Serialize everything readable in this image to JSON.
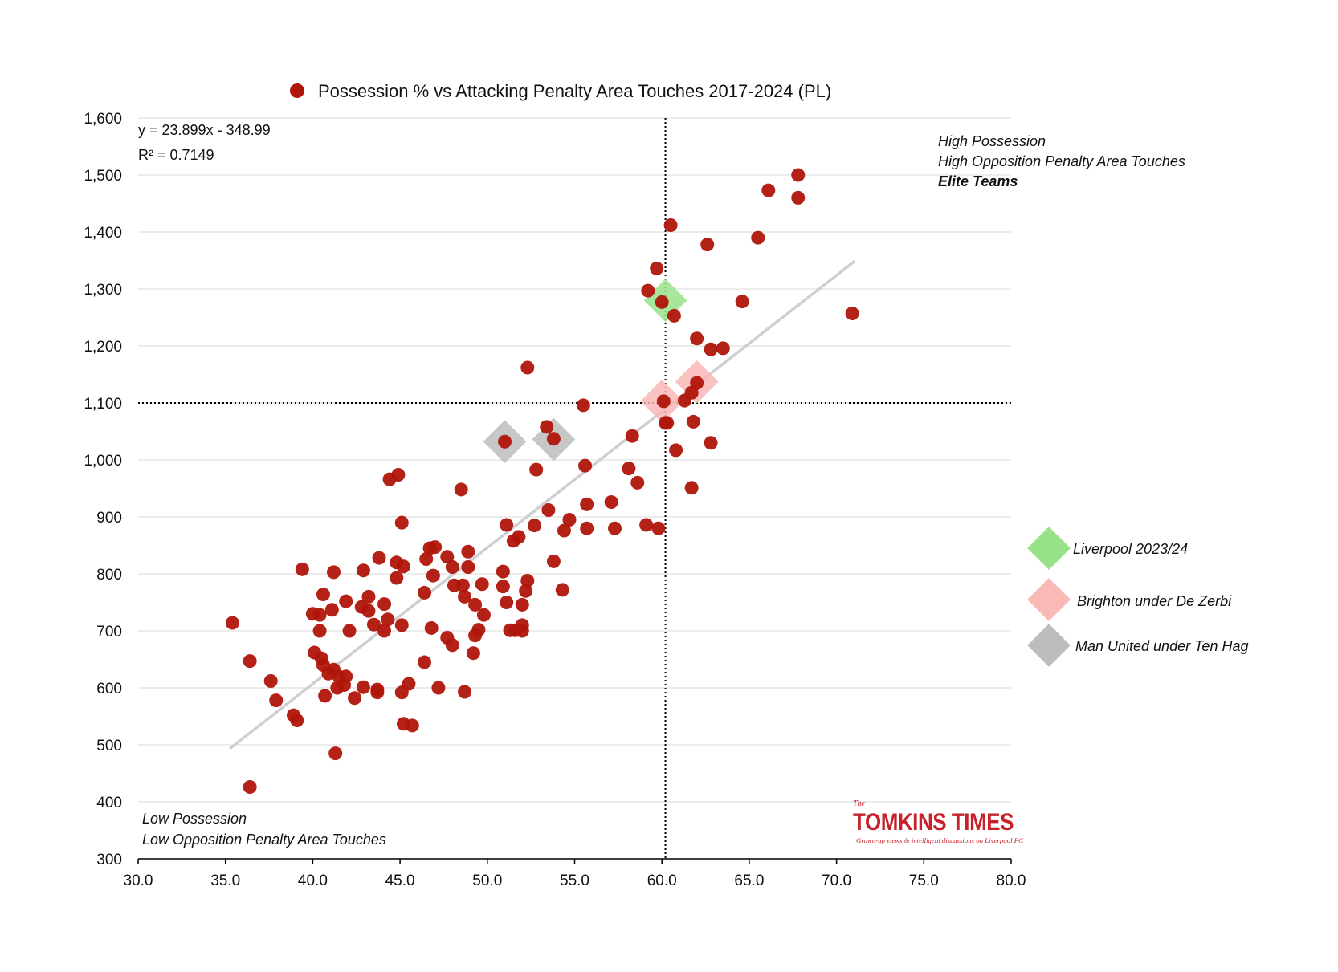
{
  "colors": {
    "points": "#b0150a",
    "trendline": "#cfcfcf",
    "liverpool": "#98e28a",
    "brighton": "#f9b9b6",
    "man_united": "#bdbdbd",
    "logo": "#c8202a"
  },
  "chart_data": {
    "type": "scatter",
    "title": "Possession % vs Attacking Penalty Area Touches 2017-2024 (PL)",
    "xlabel": "",
    "ylabel": "",
    "xlim": [
      30,
      80
    ],
    "ylim": [
      300,
      1600
    ],
    "x_ticks": [
      "30.0",
      "35.0",
      "40.0",
      "45.0",
      "50.0",
      "55.0",
      "60.0",
      "65.0",
      "70.0",
      "75.0",
      "80.0"
    ],
    "y_ticks": [
      "300",
      "400",
      "500",
      "600",
      "700",
      "800",
      "900",
      "1,000",
      "1,100",
      "1,200",
      "1,300",
      "1,400",
      "1,500",
      "1,600"
    ],
    "grid": "horizontal",
    "legend_position": "top",
    "reference_lines": {
      "x": 60.2,
      "y": 1100
    },
    "trendline": {
      "equation": "y = 23.899x - 348.99",
      "r_squared": "R² = 0.7149",
      "slope": 23.899,
      "intercept": -348.99,
      "x_range": [
        35.3,
        71.0
      ]
    },
    "quadrant_labels": {
      "top_right": [
        "High Possession",
        "High Opposition Penalty Area Touches",
        "Elite Teams"
      ],
      "bottom_left": [
        "Low Possession",
        "Low Opposition Penalty Area Touches"
      ]
    },
    "highlights": [
      {
        "name": "Liverpool 2023/24",
        "color": "#98e28a",
        "points": [
          [
            60.2,
            1280
          ]
        ]
      },
      {
        "name": "Brighton under De Zerbi",
        "color": "#f9b9b6",
        "points": [
          [
            60.0,
            1103
          ],
          [
            62.0,
            1137
          ]
        ]
      },
      {
        "name": "Man United under Ten Hag",
        "color": "#bdbdbd",
        "points": [
          [
            51.0,
            1032
          ],
          [
            53.8,
            1036
          ]
        ]
      }
    ],
    "series": [
      {
        "name": "Possession % vs Attacking Penalty Area Touches 2017-2024 (PL)",
        "points": [
          [
            67.8,
            1500
          ],
          [
            66.1,
            1473
          ],
          [
            67.8,
            1460
          ],
          [
            60.5,
            1412
          ],
          [
            65.5,
            1390
          ],
          [
            62.6,
            1378
          ],
          [
            59.7,
            1336
          ],
          [
            59.2,
            1297
          ],
          [
            60.0,
            1277
          ],
          [
            64.6,
            1278
          ],
          [
            70.9,
            1257
          ],
          [
            60.7,
            1253
          ],
          [
            62.0,
            1213
          ],
          [
            62.8,
            1194
          ],
          [
            63.5,
            1196
          ],
          [
            52.3,
            1162
          ],
          [
            62.0,
            1135
          ],
          [
            61.7,
            1118
          ],
          [
            61.3,
            1104
          ],
          [
            60.1,
            1103
          ],
          [
            55.5,
            1096
          ],
          [
            60.2,
            1065
          ],
          [
            60.3,
            1065
          ],
          [
            61.8,
            1067
          ],
          [
            53.4,
            1058
          ],
          [
            53.8,
            1037
          ],
          [
            58.3,
            1042
          ],
          [
            51.0,
            1032
          ],
          [
            62.8,
            1030
          ],
          [
            60.8,
            1017
          ],
          [
            58.1,
            985
          ],
          [
            52.8,
            983
          ],
          [
            55.6,
            990
          ],
          [
            58.6,
            960
          ],
          [
            44.4,
            966
          ],
          [
            44.9,
            974
          ],
          [
            48.5,
            948
          ],
          [
            61.7,
            951
          ],
          [
            57.1,
            926
          ],
          [
            55.7,
            922
          ],
          [
            53.5,
            912
          ],
          [
            59.1,
            886
          ],
          [
            54.7,
            895
          ],
          [
            59.8,
            880
          ],
          [
            54.4,
            876
          ],
          [
            55.7,
            880
          ],
          [
            57.3,
            880
          ],
          [
            45.1,
            890
          ],
          [
            51.1,
            886
          ],
          [
            52.7,
            885
          ],
          [
            51.8,
            865
          ],
          [
            51.5,
            858
          ],
          [
            46.7,
            845
          ],
          [
            47.0,
            847
          ],
          [
            48.9,
            839
          ],
          [
            47.7,
            830
          ],
          [
            46.5,
            826
          ],
          [
            43.8,
            828
          ],
          [
            44.8,
            820
          ],
          [
            45.2,
            813
          ],
          [
            53.8,
            822
          ],
          [
            39.4,
            808
          ],
          [
            41.2,
            803
          ],
          [
            42.9,
            806
          ],
          [
            48.0,
            812
          ],
          [
            48.9,
            812
          ],
          [
            50.9,
            804
          ],
          [
            46.9,
            797
          ],
          [
            44.8,
            793
          ],
          [
            52.3,
            788
          ],
          [
            49.7,
            782
          ],
          [
            48.1,
            780
          ],
          [
            48.6,
            780
          ],
          [
            50.9,
            778
          ],
          [
            52.2,
            770
          ],
          [
            54.3,
            772
          ],
          [
            46.4,
            767
          ],
          [
            40.6,
            764
          ],
          [
            43.2,
            760
          ],
          [
            48.7,
            760
          ],
          [
            41.9,
            752
          ],
          [
            49.3,
            746
          ],
          [
            44.1,
            747
          ],
          [
            52.0,
            746
          ],
          [
            51.1,
            750
          ],
          [
            42.8,
            742
          ],
          [
            43.2,
            735
          ],
          [
            41.1,
            737
          ],
          [
            40.0,
            730
          ],
          [
            40.4,
            728
          ],
          [
            49.8,
            728
          ],
          [
            44.3,
            720
          ],
          [
            45.1,
            710
          ],
          [
            43.5,
            711
          ],
          [
            51.6,
            701
          ],
          [
            52.0,
            710
          ],
          [
            51.3,
            701
          ],
          [
            52.0,
            700
          ],
          [
            40.4,
            700
          ],
          [
            42.1,
            700
          ],
          [
            44.1,
            700
          ],
          [
            46.8,
            705
          ],
          [
            49.5,
            702
          ],
          [
            49.3,
            692
          ],
          [
            47.7,
            688
          ],
          [
            48.0,
            675
          ],
          [
            40.1,
            662
          ],
          [
            49.2,
            661
          ],
          [
            35.4,
            714
          ],
          [
            36.4,
            647
          ],
          [
            40.5,
            652
          ],
          [
            40.6,
            640
          ],
          [
            41.2,
            632
          ],
          [
            46.4,
            645
          ],
          [
            41.5,
            620
          ],
          [
            41.9,
            620
          ],
          [
            40.9,
            625
          ],
          [
            37.6,
            612
          ],
          [
            41.8,
            605
          ],
          [
            41.4,
            600
          ],
          [
            42.9,
            601
          ],
          [
            43.7,
            597
          ],
          [
            45.5,
            607
          ],
          [
            45.1,
            592
          ],
          [
            43.7,
            592
          ],
          [
            40.7,
            586
          ],
          [
            42.4,
            582
          ],
          [
            47.2,
            600
          ],
          [
            48.7,
            593
          ],
          [
            37.9,
            578
          ],
          [
            38.9,
            552
          ],
          [
            39.1,
            543
          ],
          [
            45.2,
            537
          ],
          [
            45.7,
            534
          ],
          [
            41.3,
            485
          ],
          [
            36.4,
            426
          ]
        ]
      }
    ]
  },
  "side_legend": {
    "liverpool": "Liverpool 2023/24",
    "brighton": "Brighton under De Zerbi",
    "man_united": "Man United under Ten Hag"
  },
  "logo": {
    "the": "The",
    "name": "TOMKINS TIMES",
    "tagline": "Grown-up views & intelligent discussions on Liverpool FC"
  }
}
